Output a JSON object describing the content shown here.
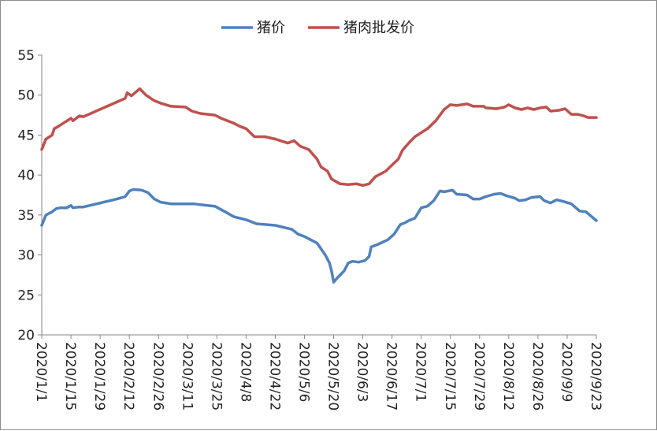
{
  "chart_data": {
    "type": "line",
    "ylim": [
      20,
      55
    ],
    "y_ticks": [
      "20",
      "25",
      "30",
      "35",
      "40",
      "45",
      "50",
      "55"
    ],
    "x_range": [
      "2020/1/1",
      "2020/9/23"
    ],
    "x_ticks": [
      "2020/1/1",
      "2020/1/15",
      "2020/1/29",
      "2020/2/12",
      "2020/2/26",
      "2020/3/11",
      "2020/3/25",
      "2020/4/8",
      "2020/4/22",
      "2020/5/6",
      "2020/5/20",
      "2020/6/3",
      "2020/6/17",
      "2020/7/1",
      "2020/7/15",
      "2020/7/29",
      "2020/8/12",
      "2020/8/26",
      "2020/9/9",
      "2020/9/23"
    ],
    "grid": false,
    "legend_position": "top",
    "series": [
      {
        "name": "猪价",
        "color": "#4f81bd",
        "points": [
          [
            "2020/1/1",
            33.7
          ],
          [
            "2020/1/3",
            35.0
          ],
          [
            "2020/1/6",
            35.4
          ],
          [
            "2020/1/8",
            35.8
          ],
          [
            "2020/1/10",
            35.9
          ],
          [
            "2020/1/13",
            35.9
          ],
          [
            "2020/1/15",
            36.2
          ],
          [
            "2020/1/16",
            35.9
          ],
          [
            "2020/1/19",
            36.0
          ],
          [
            "2020/1/21",
            36.0
          ],
          [
            "2020/2/6",
            37.0
          ],
          [
            "2020/2/10",
            37.3
          ],
          [
            "2020/2/12",
            38.0
          ],
          [
            "2020/2/14",
            38.2
          ],
          [
            "2020/2/18",
            38.1
          ],
          [
            "2020/2/21",
            37.8
          ],
          [
            "2020/2/24",
            37.0
          ],
          [
            "2020/2/27",
            36.6
          ],
          [
            "2020/3/3",
            36.4
          ],
          [
            "2020/3/14",
            36.4
          ],
          [
            "2020/3/17",
            36.3
          ],
          [
            "2020/3/24",
            36.1
          ],
          [
            "2020/3/29",
            35.4
          ],
          [
            "2020/4/2",
            34.8
          ],
          [
            "2020/4/8",
            34.4
          ],
          [
            "2020/4/13",
            33.9
          ],
          [
            "2020/4/22",
            33.7
          ],
          [
            "2020/4/30",
            33.2
          ],
          [
            "2020/5/3",
            32.6
          ],
          [
            "2020/5/6",
            32.3
          ],
          [
            "2020/5/9",
            31.9
          ],
          [
            "2020/5/12",
            31.5
          ],
          [
            "2020/5/16",
            30.0
          ],
          [
            "2020/5/18",
            29.0
          ],
          [
            "2020/5/19",
            28.0
          ],
          [
            "2020/5/20",
            26.6
          ],
          [
            "2020/5/22",
            27.2
          ],
          [
            "2020/5/25",
            28.0
          ],
          [
            "2020/5/27",
            29.0
          ],
          [
            "2020/5/29",
            29.2
          ],
          [
            "2020/6/1",
            29.1
          ],
          [
            "2020/6/4",
            29.3
          ],
          [
            "2020/6/6",
            29.8
          ],
          [
            "2020/6/7",
            31.0
          ],
          [
            "2020/6/10",
            31.3
          ],
          [
            "2020/6/15",
            31.9
          ],
          [
            "2020/6/18",
            32.6
          ],
          [
            "2020/6/21",
            33.8
          ],
          [
            "2020/6/23",
            34.0
          ],
          [
            "2020/6/25",
            34.3
          ],
          [
            "2020/6/28",
            34.6
          ],
          [
            "2020/7/1",
            35.9
          ],
          [
            "2020/7/4",
            36.1
          ],
          [
            "2020/7/7",
            36.8
          ],
          [
            "2020/7/10",
            38.0
          ],
          [
            "2020/7/12",
            37.9
          ],
          [
            "2020/7/16",
            38.1
          ],
          [
            "2020/7/18",
            37.6
          ],
          [
            "2020/7/23",
            37.5
          ],
          [
            "2020/7/26",
            37.0
          ],
          [
            "2020/7/29",
            37.0
          ],
          [
            "2020/8/1",
            37.3
          ],
          [
            "2020/8/5",
            37.6
          ],
          [
            "2020/8/8",
            37.7
          ],
          [
            "2020/8/11",
            37.4
          ],
          [
            "2020/8/15",
            37.1
          ],
          [
            "2020/8/17",
            36.8
          ],
          [
            "2020/8/20",
            36.9
          ],
          [
            "2020/8/23",
            37.2
          ],
          [
            "2020/8/27",
            37.3
          ],
          [
            "2020/8/29",
            36.8
          ],
          [
            "2020/9/1",
            36.5
          ],
          [
            "2020/9/4",
            36.9
          ],
          [
            "2020/9/7",
            36.7
          ],
          [
            "2020/9/11",
            36.4
          ],
          [
            "2020/9/15",
            35.5
          ],
          [
            "2020/9/18",
            35.4
          ],
          [
            "2020/9/23",
            34.3
          ]
        ]
      },
      {
        "name": "猪肉批发价",
        "color": "#c0504d",
        "points": [
          [
            "2020/1/1",
            43.2
          ],
          [
            "2020/1/3",
            44.5
          ],
          [
            "2020/1/6",
            45.0
          ],
          [
            "2020/1/7",
            45.8
          ],
          [
            "2020/1/9",
            46.1
          ],
          [
            "2020/1/12",
            46.6
          ],
          [
            "2020/1/15",
            47.1
          ],
          [
            "2020/1/16",
            46.8
          ],
          [
            "2020/1/19",
            47.4
          ],
          [
            "2020/1/21",
            47.3
          ],
          [
            "2020/2/10",
            49.6
          ],
          [
            "2020/2/11",
            50.3
          ],
          [
            "2020/2/13",
            49.9
          ],
          [
            "2020/2/17",
            50.8
          ],
          [
            "2020/2/20",
            50.0
          ],
          [
            "2020/2/24",
            49.3
          ],
          [
            "2020/2/27",
            49.0
          ],
          [
            "2020/3/3",
            48.6
          ],
          [
            "2020/3/10",
            48.5
          ],
          [
            "2020/3/13",
            48.0
          ],
          [
            "2020/3/17",
            47.7
          ],
          [
            "2020/3/24",
            47.5
          ],
          [
            "2020/3/27",
            47.1
          ],
          [
            "2020/4/2",
            46.5
          ],
          [
            "2020/4/5",
            46.1
          ],
          [
            "2020/4/8",
            45.8
          ],
          [
            "2020/4/12",
            44.8
          ],
          [
            "2020/4/17",
            44.8
          ],
          [
            "2020/4/22",
            44.5
          ],
          [
            "2020/4/28",
            44.0
          ],
          [
            "2020/5/1",
            44.3
          ],
          [
            "2020/5/4",
            43.6
          ],
          [
            "2020/5/8",
            43.2
          ],
          [
            "2020/5/12",
            42.0
          ],
          [
            "2020/5/14",
            41.0
          ],
          [
            "2020/5/17",
            40.5
          ],
          [
            "2020/5/19",
            39.5
          ],
          [
            "2020/5/23",
            38.9
          ],
          [
            "2020/5/27",
            38.8
          ],
          [
            "2020/5/31",
            38.9
          ],
          [
            "2020/6/3",
            38.7
          ],
          [
            "2020/6/6",
            38.9
          ],
          [
            "2020/6/9",
            39.8
          ],
          [
            "2020/6/12",
            40.2
          ],
          [
            "2020/6/14",
            40.5
          ],
          [
            "2020/6/16",
            41.0
          ],
          [
            "2020/6/20",
            42.0
          ],
          [
            "2020/6/22",
            43.1
          ],
          [
            "2020/6/25",
            44.0
          ],
          [
            "2020/6/28",
            44.8
          ],
          [
            "2020/7/1",
            45.3
          ],
          [
            "2020/7/4",
            45.8
          ],
          [
            "2020/7/8",
            46.8
          ],
          [
            "2020/7/12",
            48.2
          ],
          [
            "2020/7/15",
            48.8
          ],
          [
            "2020/7/18",
            48.7
          ],
          [
            "2020/7/23",
            48.9
          ],
          [
            "2020/7/26",
            48.6
          ],
          [
            "2020/7/31",
            48.6
          ],
          [
            "2020/8/1",
            48.4
          ],
          [
            "2020/8/6",
            48.3
          ],
          [
            "2020/8/10",
            48.5
          ],
          [
            "2020/8/12",
            48.8
          ],
          [
            "2020/8/15",
            48.4
          ],
          [
            "2020/8/18",
            48.2
          ],
          [
            "2020/8/21",
            48.4
          ],
          [
            "2020/8/24",
            48.2
          ],
          [
            "2020/8/27",
            48.4
          ],
          [
            "2020/8/30",
            48.5
          ],
          [
            "2020/9/1",
            48.0
          ],
          [
            "2020/9/5",
            48.1
          ],
          [
            "2020/9/8",
            48.3
          ],
          [
            "2020/9/11",
            47.6
          ],
          [
            "2020/9/14",
            47.6
          ],
          [
            "2020/9/17",
            47.4
          ],
          [
            "2020/9/19",
            47.2
          ],
          [
            "2020/9/23",
            47.2
          ]
        ]
      }
    ]
  }
}
